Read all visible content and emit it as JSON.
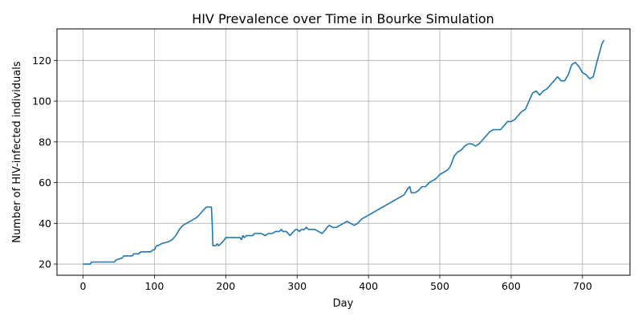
{
  "chart_data": {
    "type": "line",
    "title": "HIV Prevalence over Time in Bourke Simulation",
    "xlabel": "Day",
    "ylabel": "Number of HIV-infected individuals",
    "xlim": [
      -36.5,
      766.5
    ],
    "ylim": [
      14.5,
      135.5
    ],
    "xticks": [
      0,
      100,
      200,
      300,
      400,
      500,
      600,
      700
    ],
    "yticks": [
      20,
      40,
      60,
      80,
      100,
      120
    ],
    "grid": true,
    "line_color": "#1f77b4",
    "series": [
      {
        "name": "",
        "x": [
          0,
          10,
          12,
          44,
          46,
          55,
          57,
          69,
          71,
          78,
          81,
          95,
          98,
          100,
          103,
          105,
          110,
          120,
          125,
          130,
          135,
          140,
          145,
          150,
          155,
          160,
          165,
          170,
          173,
          180,
          181,
          182,
          186,
          188,
          190,
          193,
          196,
          200,
          205,
          210,
          215,
          220,
          222,
          224,
          226,
          229,
          232,
          235,
          238,
          240,
          245,
          250,
          255,
          260,
          265,
          270,
          275,
          278,
          280,
          285,
          290,
          295,
          298,
          300,
          303,
          306,
          310,
          313,
          316,
          320,
          325,
          330,
          335,
          340,
          342,
          345,
          350,
          355,
          360,
          365,
          370,
          375,
          380,
          385,
          390,
          395,
          400,
          405,
          410,
          415,
          420,
          425,
          430,
          435,
          440,
          445,
          450,
          455,
          458,
          460,
          465,
          470,
          475,
          480,
          485,
          490,
          495,
          500,
          505,
          510,
          513,
          516,
          520,
          525,
          530,
          535,
          540,
          545,
          550,
          555,
          560,
          565,
          570,
          575,
          580,
          585,
          590,
          595,
          600,
          605,
          610,
          615,
          620,
          625,
          630,
          635,
          640,
          645,
          650,
          655,
          660,
          665,
          670,
          675,
          680,
          685,
          690,
          695,
          700,
          705,
          710,
          715,
          718,
          720,
          724,
          727,
          730
        ],
        "y": [
          20,
          20,
          21,
          21,
          22,
          23,
          24,
          24,
          25,
          25,
          26,
          26,
          27,
          27,
          29,
          29,
          30,
          31,
          32,
          34,
          37,
          39,
          40,
          41,
          42,
          43,
          45,
          47,
          48,
          48,
          40,
          29,
          29,
          30,
          29,
          30,
          31,
          33,
          33,
          33,
          33,
          33,
          32,
          34,
          33,
          34,
          34,
          34,
          34,
          35,
          35,
          35,
          34,
          35,
          35,
          36,
          36,
          37,
          36,
          36,
          34,
          36,
          37,
          37,
          36,
          37,
          37,
          38,
          37,
          37,
          37,
          36,
          35,
          37,
          38,
          39,
          38,
          38,
          39,
          40,
          41,
          40,
          39,
          40,
          42,
          43,
          44,
          45,
          46,
          47,
          48,
          49,
          50,
          51,
          52,
          53,
          54,
          57,
          58,
          55,
          55,
          56,
          58,
          58,
          60,
          61,
          62,
          64,
          65,
          66,
          67,
          69,
          73,
          75,
          76,
          78,
          79,
          79,
          78,
          79,
          81,
          83,
          85,
          86,
          86,
          86,
          88,
          90,
          90,
          91,
          93,
          95,
          96,
          100,
          104,
          105,
          103,
          105,
          106,
          108,
          110,
          112,
          110,
          110,
          113,
          118,
          119,
          117,
          114,
          113,
          111,
          112,
          116,
          119,
          124,
          128,
          130
        ]
      }
    ]
  }
}
